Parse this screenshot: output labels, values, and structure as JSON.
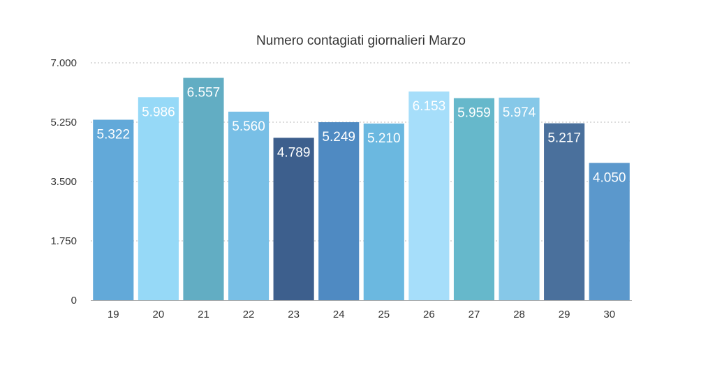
{
  "chart_data": {
    "type": "bar",
    "title": "Numero contagiati giornalieri Marzo",
    "xlabel": "",
    "ylabel": "",
    "categories": [
      "19",
      "20",
      "21",
      "22",
      "23",
      "24",
      "25",
      "26",
      "27",
      "28",
      "29",
      "30"
    ],
    "values": [
      5322,
      5986,
      6557,
      5560,
      4789,
      5249,
      5210,
      6153,
      5959,
      5974,
      5217,
      4050
    ],
    "value_labels": [
      "5.322",
      "5.986",
      "6.557",
      "5.560",
      "4.789",
      "5.249",
      "5.210",
      "6.153",
      "5.959",
      "5.974",
      "5.217",
      "4.050"
    ],
    "ylim": [
      0,
      7000
    ],
    "yticks": [
      0,
      1750,
      3500,
      5250,
      7000
    ],
    "ytick_labels": [
      "0",
      "1.750",
      "3.500",
      "5.250",
      "7.000"
    ],
    "grid": true,
    "legend": "none",
    "bar_colors": [
      "#62a9d9",
      "#96d9f7",
      "#62adc3",
      "#78bfe6",
      "#3d5f8d",
      "#4f8ac2",
      "#6bb8e0",
      "#a6defa",
      "#66b8cb",
      "#86c8e8",
      "#4a709c",
      "#5b98cc"
    ],
    "text_color": "#333333",
    "grid_color": "#bbbbbb",
    "axis_color": "#aaaaaa",
    "label_color": "#ffffff"
  }
}
